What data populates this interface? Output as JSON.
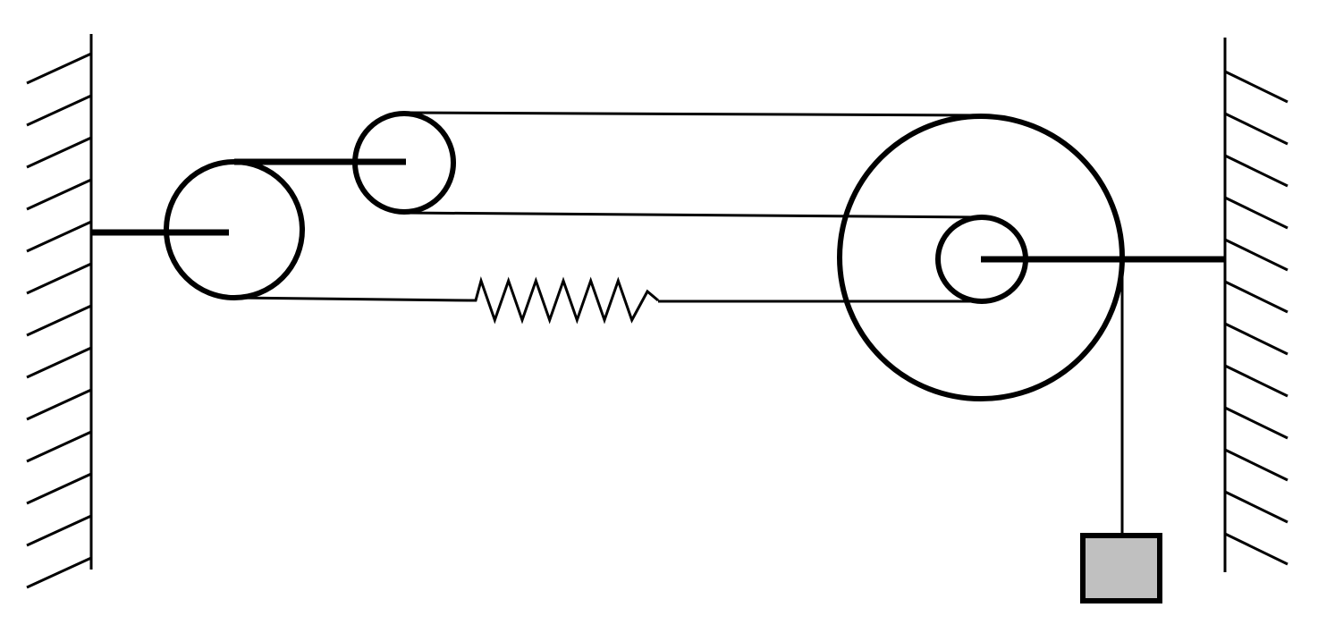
{
  "colors": {
    "stroke": "#000000",
    "background": "#ffffff",
    "mass_fill": "#c0c0c0"
  },
  "components": {
    "walls": 2,
    "pulleys": 3,
    "compound_pulleys": 1,
    "springs": 1,
    "hanging_masses": 1
  },
  "spring": {
    "zigzag_peaks": 6
  }
}
